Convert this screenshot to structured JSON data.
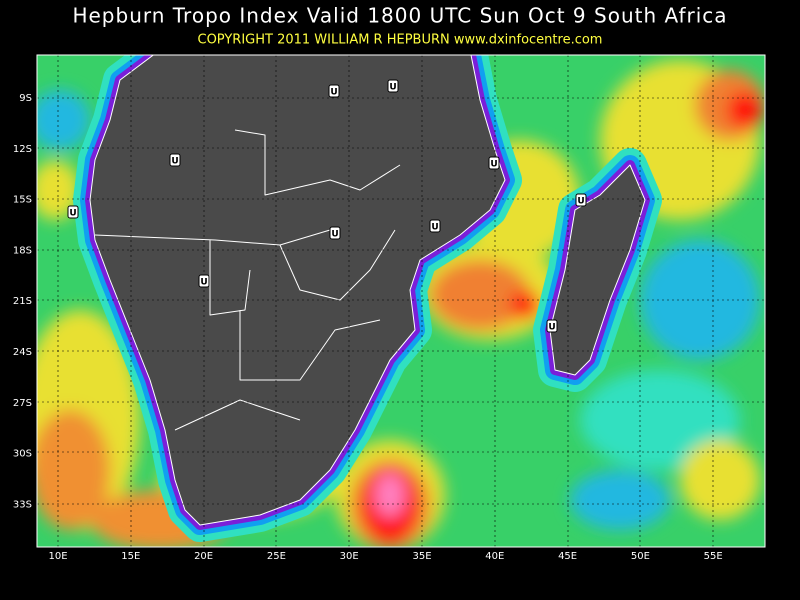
{
  "header": {
    "title": "Hepburn Tropo Index Valid 1800 UTC Sun Oct 9 South Africa",
    "copyright": "COPYRIGHT 2011  WILLIAM R HEPBURN  www.dxinfocentre.com"
  },
  "map": {
    "lat_labels": [
      "9S",
      "12S",
      "15S",
      "18S",
      "21S",
      "24S",
      "27S",
      "30S",
      "33S"
    ],
    "lon_labels": [
      "10E",
      "15E",
      "20E",
      "25E",
      "30E",
      "35E",
      "40E",
      "45E",
      "50E",
      "55E"
    ],
    "markers": [
      "U",
      "U",
      "U",
      "U",
      "U",
      "U",
      "U",
      "U",
      "U",
      "U"
    ]
  }
}
